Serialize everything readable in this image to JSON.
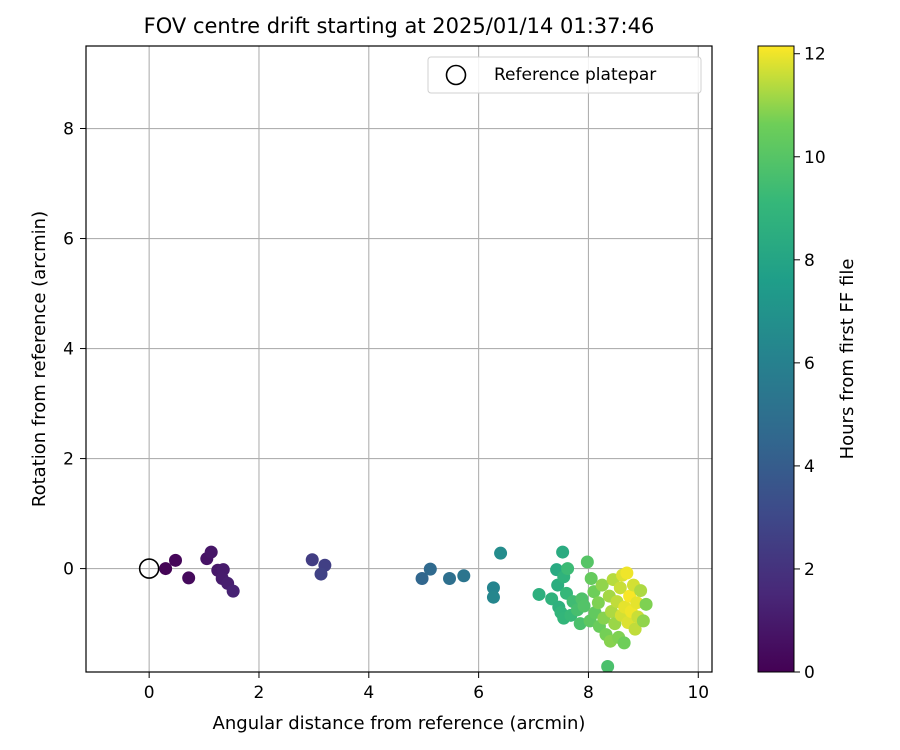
{
  "chart_data": {
    "type": "scatter",
    "title": "FOV centre drift starting at 2025/01/14 01:37:46",
    "xlabel": "Angular distance from reference (arcmin)",
    "ylabel": "Rotation from reference (arcmin)",
    "xlim": [
      -1.15,
      10.25
    ],
    "ylim": [
      -1.88,
      9.5
    ],
    "xticks": [
      0,
      2,
      4,
      6,
      8,
      10
    ],
    "yticks": [
      0,
      2,
      4,
      6,
      8
    ],
    "grid": true,
    "legend": {
      "placement": "top-right",
      "entries": [
        "Reference platepar"
      ]
    },
    "reference_point": {
      "label": "Reference platepar",
      "x": 0,
      "y": 0
    },
    "colorbar": {
      "label": "Hours from first FF file",
      "colormap": "viridis",
      "range": [
        0,
        12.15
      ],
      "ticks": [
        0,
        2,
        4,
        6,
        8,
        10,
        12
      ]
    },
    "points": [
      {
        "x": 0.3,
        "y": 0.0,
        "h": 0.1
      },
      {
        "x": 0.48,
        "y": 0.15,
        "h": 0.2
      },
      {
        "x": 0.72,
        "y": -0.17,
        "h": 0.35
      },
      {
        "x": 1.05,
        "y": 0.18,
        "h": 0.7
      },
      {
        "x": 1.13,
        "y": 0.3,
        "h": 0.8
      },
      {
        "x": 1.25,
        "y": -0.03,
        "h": 0.9
      },
      {
        "x": 1.35,
        "y": -0.02,
        "h": 1.0
      },
      {
        "x": 1.33,
        "y": -0.18,
        "h": 1.05
      },
      {
        "x": 1.43,
        "y": -0.27,
        "h": 1.15
      },
      {
        "x": 1.53,
        "y": -0.41,
        "h": 1.3
      },
      {
        "x": 2.97,
        "y": 0.16,
        "h": 2.5
      },
      {
        "x": 3.2,
        "y": 0.06,
        "h": 2.6
      },
      {
        "x": 3.13,
        "y": -0.1,
        "h": 2.7
      },
      {
        "x": 4.97,
        "y": -0.18,
        "h": 4.5
      },
      {
        "x": 5.12,
        "y": -0.01,
        "h": 4.7
      },
      {
        "x": 5.47,
        "y": -0.18,
        "h": 5.0
      },
      {
        "x": 5.73,
        "y": -0.13,
        "h": 5.3
      },
      {
        "x": 6.27,
        "y": -0.35,
        "h": 6.2
      },
      {
        "x": 6.27,
        "y": -0.52,
        "h": 6.3
      },
      {
        "x": 6.4,
        "y": 0.28,
        "h": 6.6
      },
      {
        "x": 7.1,
        "y": -0.47,
        "h": 8.6
      },
      {
        "x": 7.33,
        "y": -0.55,
        "h": 8.8
      },
      {
        "x": 7.42,
        "y": -0.02,
        "h": 8.3
      },
      {
        "x": 7.44,
        "y": -0.3,
        "h": 8.5
      },
      {
        "x": 7.46,
        "y": -0.7,
        "h": 8.7
      },
      {
        "x": 7.5,
        "y": -0.8,
        "h": 8.9
      },
      {
        "x": 7.55,
        "y": -0.9,
        "h": 9.0
      },
      {
        "x": 7.53,
        "y": 0.3,
        "h": 8.4
      },
      {
        "x": 7.55,
        "y": -0.15,
        "h": 8.8
      },
      {
        "x": 7.6,
        "y": -0.45,
        "h": 9.1
      },
      {
        "x": 7.62,
        "y": 0.0,
        "h": 9.3
      },
      {
        "x": 7.68,
        "y": -0.85,
        "h": 9.2
      },
      {
        "x": 7.72,
        "y": -0.6,
        "h": 9.4
      },
      {
        "x": 7.8,
        "y": -0.75,
        "h": 9.6
      },
      {
        "x": 7.85,
        "y": -1.0,
        "h": 9.7
      },
      {
        "x": 7.88,
        "y": -0.55,
        "h": 9.8
      },
      {
        "x": 7.92,
        "y": -0.68,
        "h": 9.9
      },
      {
        "x": 7.98,
        "y": 0.12,
        "h": 10.0
      },
      {
        "x": 8.03,
        "y": -0.95,
        "h": 10.2
      },
      {
        "x": 8.05,
        "y": -0.18,
        "h": 10.4
      },
      {
        "x": 8.1,
        "y": -0.42,
        "h": 10.6
      },
      {
        "x": 8.12,
        "y": -0.8,
        "h": 10.3
      },
      {
        "x": 8.18,
        "y": -0.62,
        "h": 10.8
      },
      {
        "x": 8.2,
        "y": -1.05,
        "h": 10.5
      },
      {
        "x": 8.25,
        "y": -0.3,
        "h": 11.0
      },
      {
        "x": 8.28,
        "y": -0.9,
        "h": 10.9
      },
      {
        "x": 8.32,
        "y": -1.2,
        "h": 10.7
      },
      {
        "x": 8.35,
        "y": -1.78,
        "h": 9.7
      },
      {
        "x": 8.38,
        "y": -0.5,
        "h": 11.2
      },
      {
        "x": 8.4,
        "y": -1.32,
        "h": 10.9
      },
      {
        "x": 8.42,
        "y": -0.78,
        "h": 11.3
      },
      {
        "x": 8.45,
        "y": -0.2,
        "h": 11.4
      },
      {
        "x": 8.48,
        "y": -1.0,
        "h": 11.1
      },
      {
        "x": 8.52,
        "y": -0.6,
        "h": 11.5
      },
      {
        "x": 8.55,
        "y": -1.25,
        "h": 10.8
      },
      {
        "x": 8.58,
        "y": -0.35,
        "h": 11.6
      },
      {
        "x": 8.6,
        "y": -0.85,
        "h": 11.7
      },
      {
        "x": 8.62,
        "y": -0.12,
        "h": 11.8
      },
      {
        "x": 8.65,
        "y": -1.35,
        "h": 10.6
      },
      {
        "x": 8.66,
        "y": -0.7,
        "h": 11.9
      },
      {
        "x": 8.7,
        "y": -0.08,
        "h": 12.0
      },
      {
        "x": 8.72,
        "y": -0.98,
        "h": 11.8
      },
      {
        "x": 8.75,
        "y": -0.5,
        "h": 12.1
      },
      {
        "x": 8.78,
        "y": -0.78,
        "h": 12.0
      },
      {
        "x": 8.82,
        "y": -0.3,
        "h": 11.7
      },
      {
        "x": 8.85,
        "y": -1.1,
        "h": 11.5
      },
      {
        "x": 8.88,
        "y": -0.62,
        "h": 11.9
      },
      {
        "x": 8.9,
        "y": -0.88,
        "h": 11.6
      },
      {
        "x": 8.95,
        "y": -0.4,
        "h": 11.3
      },
      {
        "x": 9.0,
        "y": -0.95,
        "h": 11.0
      },
      {
        "x": 9.05,
        "y": -0.65,
        "h": 10.8
      }
    ]
  }
}
